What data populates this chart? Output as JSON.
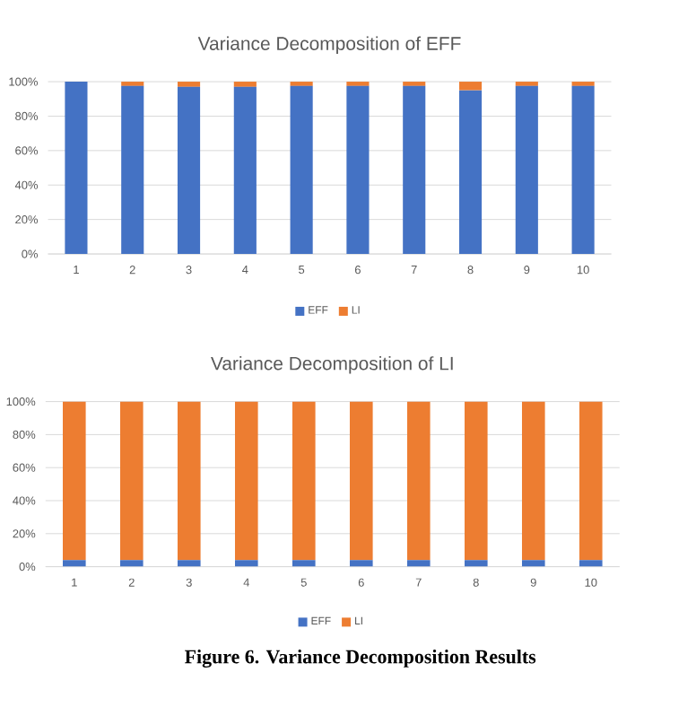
{
  "chart_data": [
    {
      "type": "bar",
      "title": "Variance Decomposition of EFF",
      "stacked": true,
      "grid": "y",
      "legend": "bottom",
      "categories": [
        "1",
        "2",
        "3",
        "4",
        "5",
        "6",
        "7",
        "8",
        "9",
        "10"
      ],
      "ylim": [
        0,
        100
      ],
      "yticks": [
        {
          "value": 0,
          "label": "0%"
        },
        {
          "value": 20,
          "label": "20%"
        },
        {
          "value": 40,
          "label": "40%"
        },
        {
          "value": 60,
          "label": "60%"
        },
        {
          "value": 80,
          "label": "80%"
        },
        {
          "value": 100,
          "label": "100%"
        }
      ],
      "series": [
        {
          "name": "EFF",
          "color": "#4472c4",
          "values": [
            100,
            97.5,
            97,
            97,
            97.5,
            97.5,
            97.5,
            95,
            97.5,
            97.5
          ]
        },
        {
          "name": "LI",
          "color": "#ed7d31",
          "values": [
            0,
            2.5,
            3,
            3,
            2.5,
            2.5,
            2.5,
            5,
            2.5,
            2.5
          ]
        }
      ]
    },
    {
      "type": "bar",
      "title": "Variance Decomposition of LI",
      "stacked": true,
      "grid": "y",
      "legend": "bottom",
      "categories": [
        "1",
        "2",
        "3",
        "4",
        "5",
        "6",
        "7",
        "8",
        "9",
        "10"
      ],
      "ylim": [
        0,
        100
      ],
      "yticks": [
        {
          "value": 0,
          "label": "0%"
        },
        {
          "value": 20,
          "label": "20%"
        },
        {
          "value": 40,
          "label": "40%"
        },
        {
          "value": 60,
          "label": "60%"
        },
        {
          "value": 80,
          "label": "80%"
        },
        {
          "value": 100,
          "label": "100%"
        }
      ],
      "series": [
        {
          "name": "EFF",
          "color": "#4472c4",
          "values": [
            4,
            4,
            4,
            4,
            4,
            4,
            4,
            4,
            4,
            4
          ]
        },
        {
          "name": "LI",
          "color": "#ed7d31",
          "values": [
            96,
            96,
            96,
            96,
            96,
            96,
            96,
            96,
            96,
            96
          ]
        }
      ],
      "annotations": [
        "Figure 6. Variance Decomposition Results"
      ]
    }
  ]
}
